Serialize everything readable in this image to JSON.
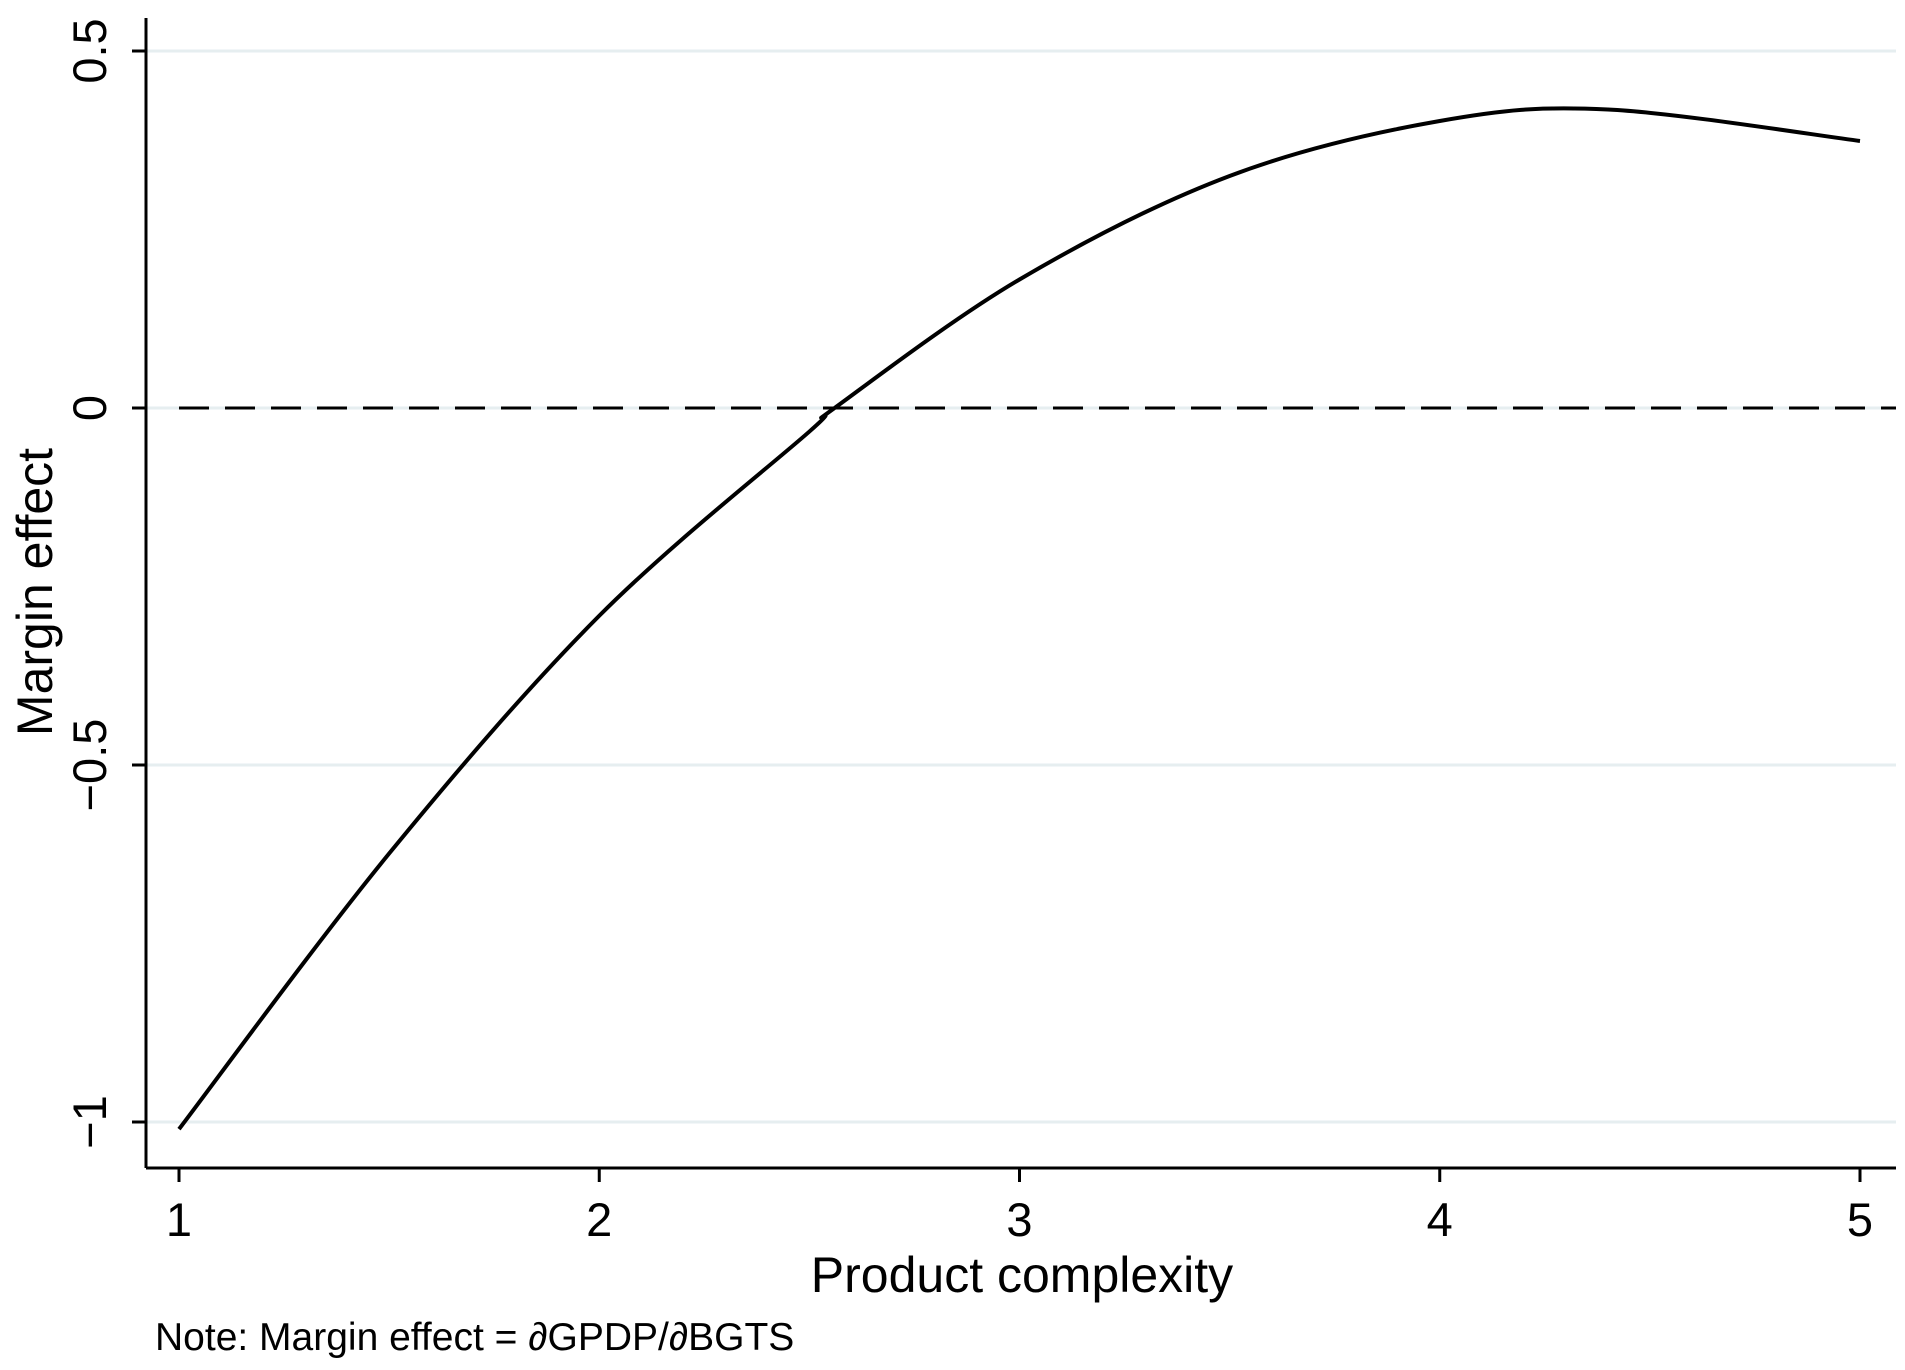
{
  "chart_data": {
    "type": "line",
    "xlabel": "Product complexity",
    "ylabel": "Margin effect",
    "xlim": [
      1,
      5
    ],
    "ylim": [
      -1,
      0.5
    ],
    "x_ticks": [
      1,
      2,
      3,
      4,
      5
    ],
    "x_tick_labels": [
      "1",
      "2",
      "3",
      "4",
      "5"
    ],
    "y_ticks": [
      -1,
      -0.5,
      0,
      0.5
    ],
    "y_tick_labels": [
      "−1",
      "−0.5",
      "0",
      "0.5"
    ],
    "grid": "horizontal",
    "reference_line": {
      "y": 0,
      "style": "dashed"
    },
    "series": [
      {
        "x": [
          1.0,
          1.5,
          2.0,
          2.5,
          2.56,
          3.0,
          3.5,
          4.0,
          4.4,
          5.0
        ],
        "y": [
          -1.01,
          -0.624,
          -0.291,
          -0.033,
          0.0,
          0.18,
          0.325,
          0.402,
          0.418,
          0.374
        ]
      }
    ],
    "colors": {
      "line": "#000000",
      "grid": "#e6eef0",
      "background": "#ffffff"
    }
  },
  "note": "Note: Margin effect = ∂GPDP/∂BGTS"
}
